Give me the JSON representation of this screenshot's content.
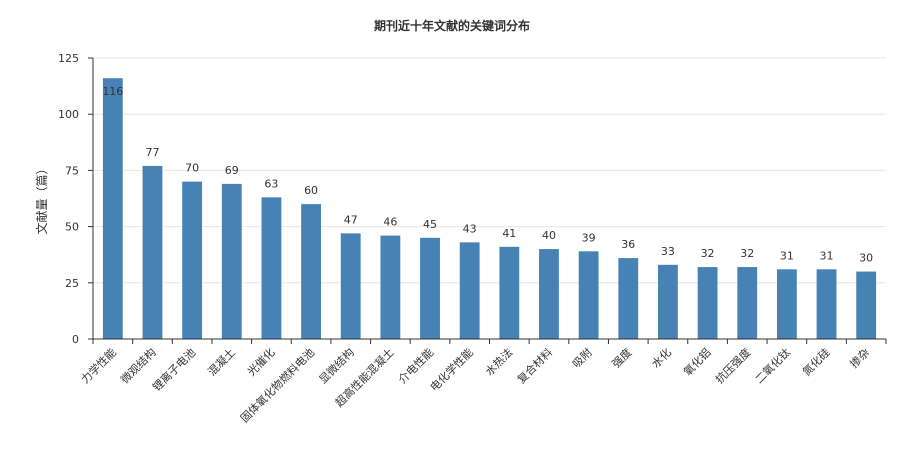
{
  "chart_data": {
    "type": "bar",
    "title": "期刊近十年文献的关键词分布",
    "xlabel": "",
    "ylabel": "文献量（篇）",
    "ylim": [
      0,
      125
    ],
    "yticks": [
      0,
      25,
      50,
      75,
      100,
      125
    ],
    "grid": true,
    "categories": [
      "力学性能",
      "微观结构",
      "锂离子电池",
      "混凝土",
      "光催化",
      "固体氧化物燃料电池",
      "显微结构",
      "超高性能混凝土",
      "介电性能",
      "电化学性能",
      "水热法",
      "复合材料",
      "吸附",
      "强度",
      "水化",
      "氧化铝",
      "抗压强度",
      "二氧化钛",
      "氮化硅",
      "掺杂"
    ],
    "values": [
      116,
      77,
      70,
      69,
      63,
      60,
      47,
      46,
      45,
      43,
      41,
      40,
      39,
      36,
      33,
      32,
      32,
      31,
      31,
      30
    ],
    "colors": {
      "bar": "#4682b4",
      "grid": "#e6e6e6",
      "axis": "#333333",
      "text": "#333333"
    }
  }
}
